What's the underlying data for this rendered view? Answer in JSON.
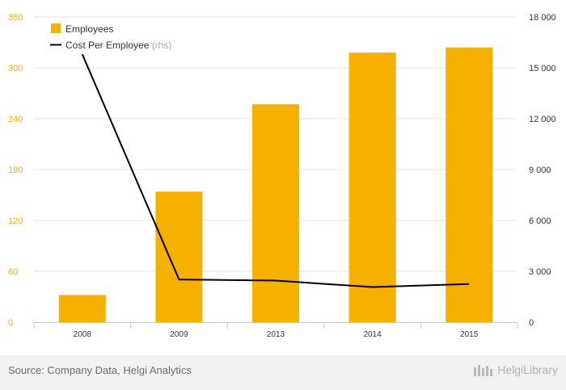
{
  "chart_data": {
    "type": "bar+line",
    "categories": [
      "2008",
      "2009",
      "2013",
      "2014",
      "2015"
    ],
    "series": [
      {
        "name": "Employees",
        "type": "bar",
        "axis": "left",
        "color": "#F5B000",
        "values": [
          32,
          154,
          257,
          318,
          324
        ]
      },
      {
        "name": "Cost Per Employee",
        "legend_suffix": "(rhs)",
        "type": "line",
        "axis": "right",
        "color": "#000000",
        "values": [
          15800,
          2520,
          2450,
          2070,
          2250
        ]
      }
    ],
    "y_left": {
      "ylim": [
        0,
        360
      ],
      "ticks": [
        "0",
        "60",
        "120",
        "180",
        "240",
        "300",
        "360"
      ],
      "tick_color": "#F5B000"
    },
    "y_right": {
      "ylim": [
        0,
        18000
      ],
      "ticks": [
        "0",
        "3 000",
        "6 000",
        "9 000",
        "12 000",
        "15 000",
        "18 000"
      ]
    },
    "grid": true,
    "legend_position": "top-left"
  },
  "footer": {
    "source": "Source: Company Data, Helgi Analytics",
    "brand": "HelgiLibrary"
  }
}
